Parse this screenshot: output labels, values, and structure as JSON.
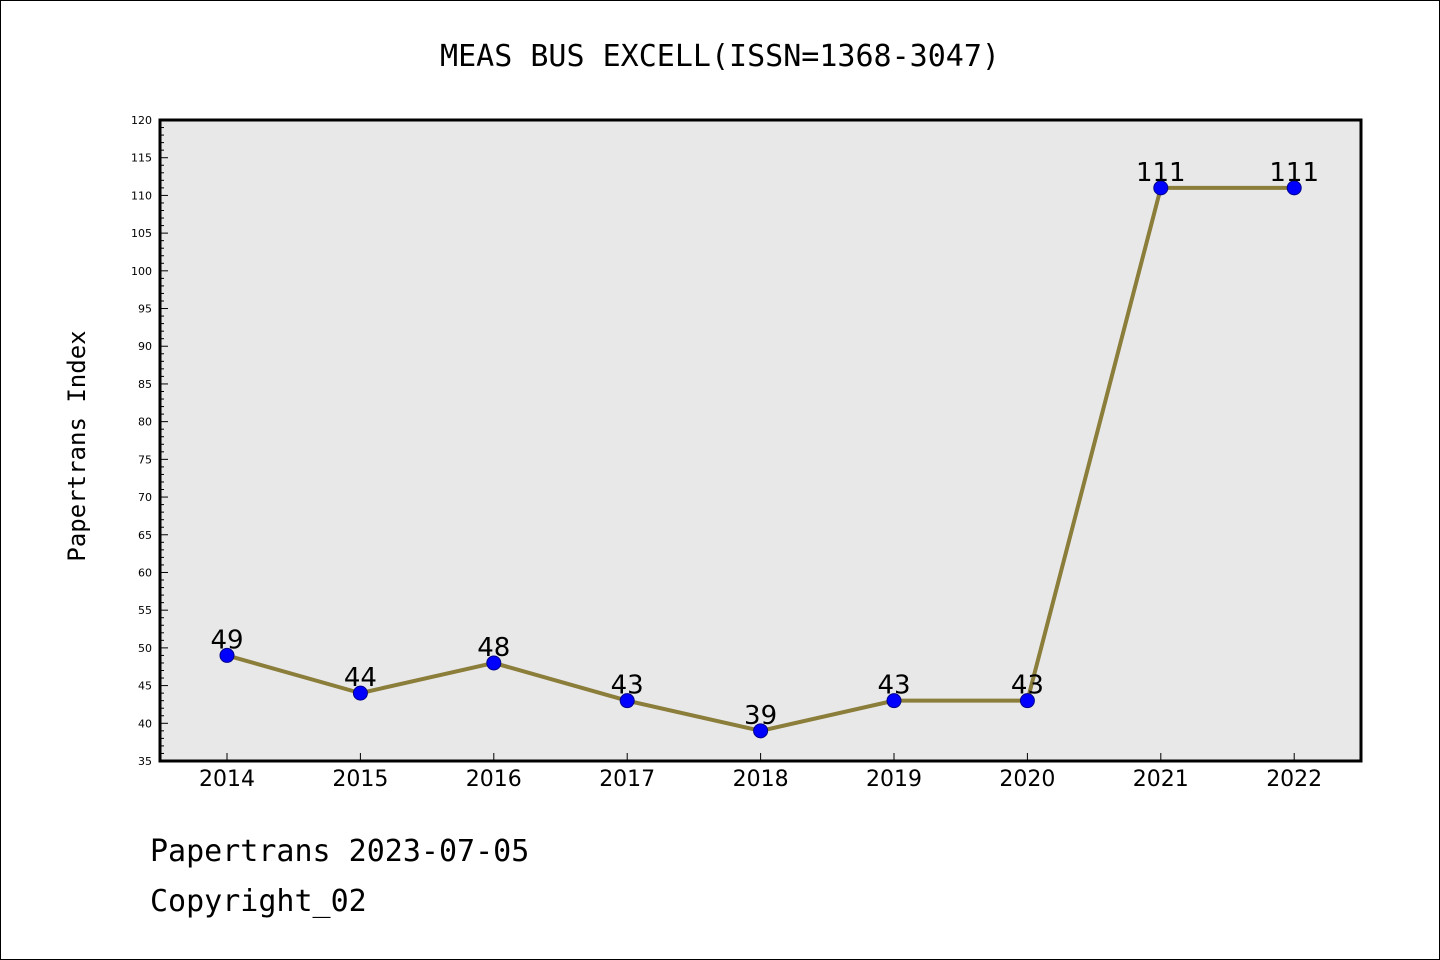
{
  "chart_data": {
    "type": "line",
    "title": "MEAS BUS EXCELL(ISSN=1368-3047)",
    "xlabel": "",
    "ylabel": "Papertrans Index",
    "categories": [
      "2014",
      "2015",
      "2016",
      "2017",
      "2018",
      "2019",
      "2020",
      "2021",
      "2022"
    ],
    "series": [
      {
        "values": [
          49,
          44,
          48,
          43,
          39,
          43,
          43,
          111,
          111
        ],
        "data_labels": [
          "49",
          "44",
          "48",
          "43",
          "39",
          "43",
          "43",
          "111",
          "111"
        ]
      }
    ],
    "ylim": [
      35,
      120
    ],
    "yticks": [
      "35",
      "40",
      "45",
      "50",
      "55",
      "60",
      "65",
      "70",
      "75",
      "80",
      "85",
      "90",
      "95",
      "100",
      "105",
      "110",
      "115",
      "120"
    ],
    "grid": false,
    "legend": "none",
    "colors": {
      "plot_background": "#e8e8e8",
      "line": "#8b7d3a",
      "marker_fill": "#0000ff",
      "marker_stroke": "#00008b"
    }
  },
  "footer": {
    "date_line": "Papertrans 2023-07-05",
    "copyright": "Copyright_02"
  }
}
